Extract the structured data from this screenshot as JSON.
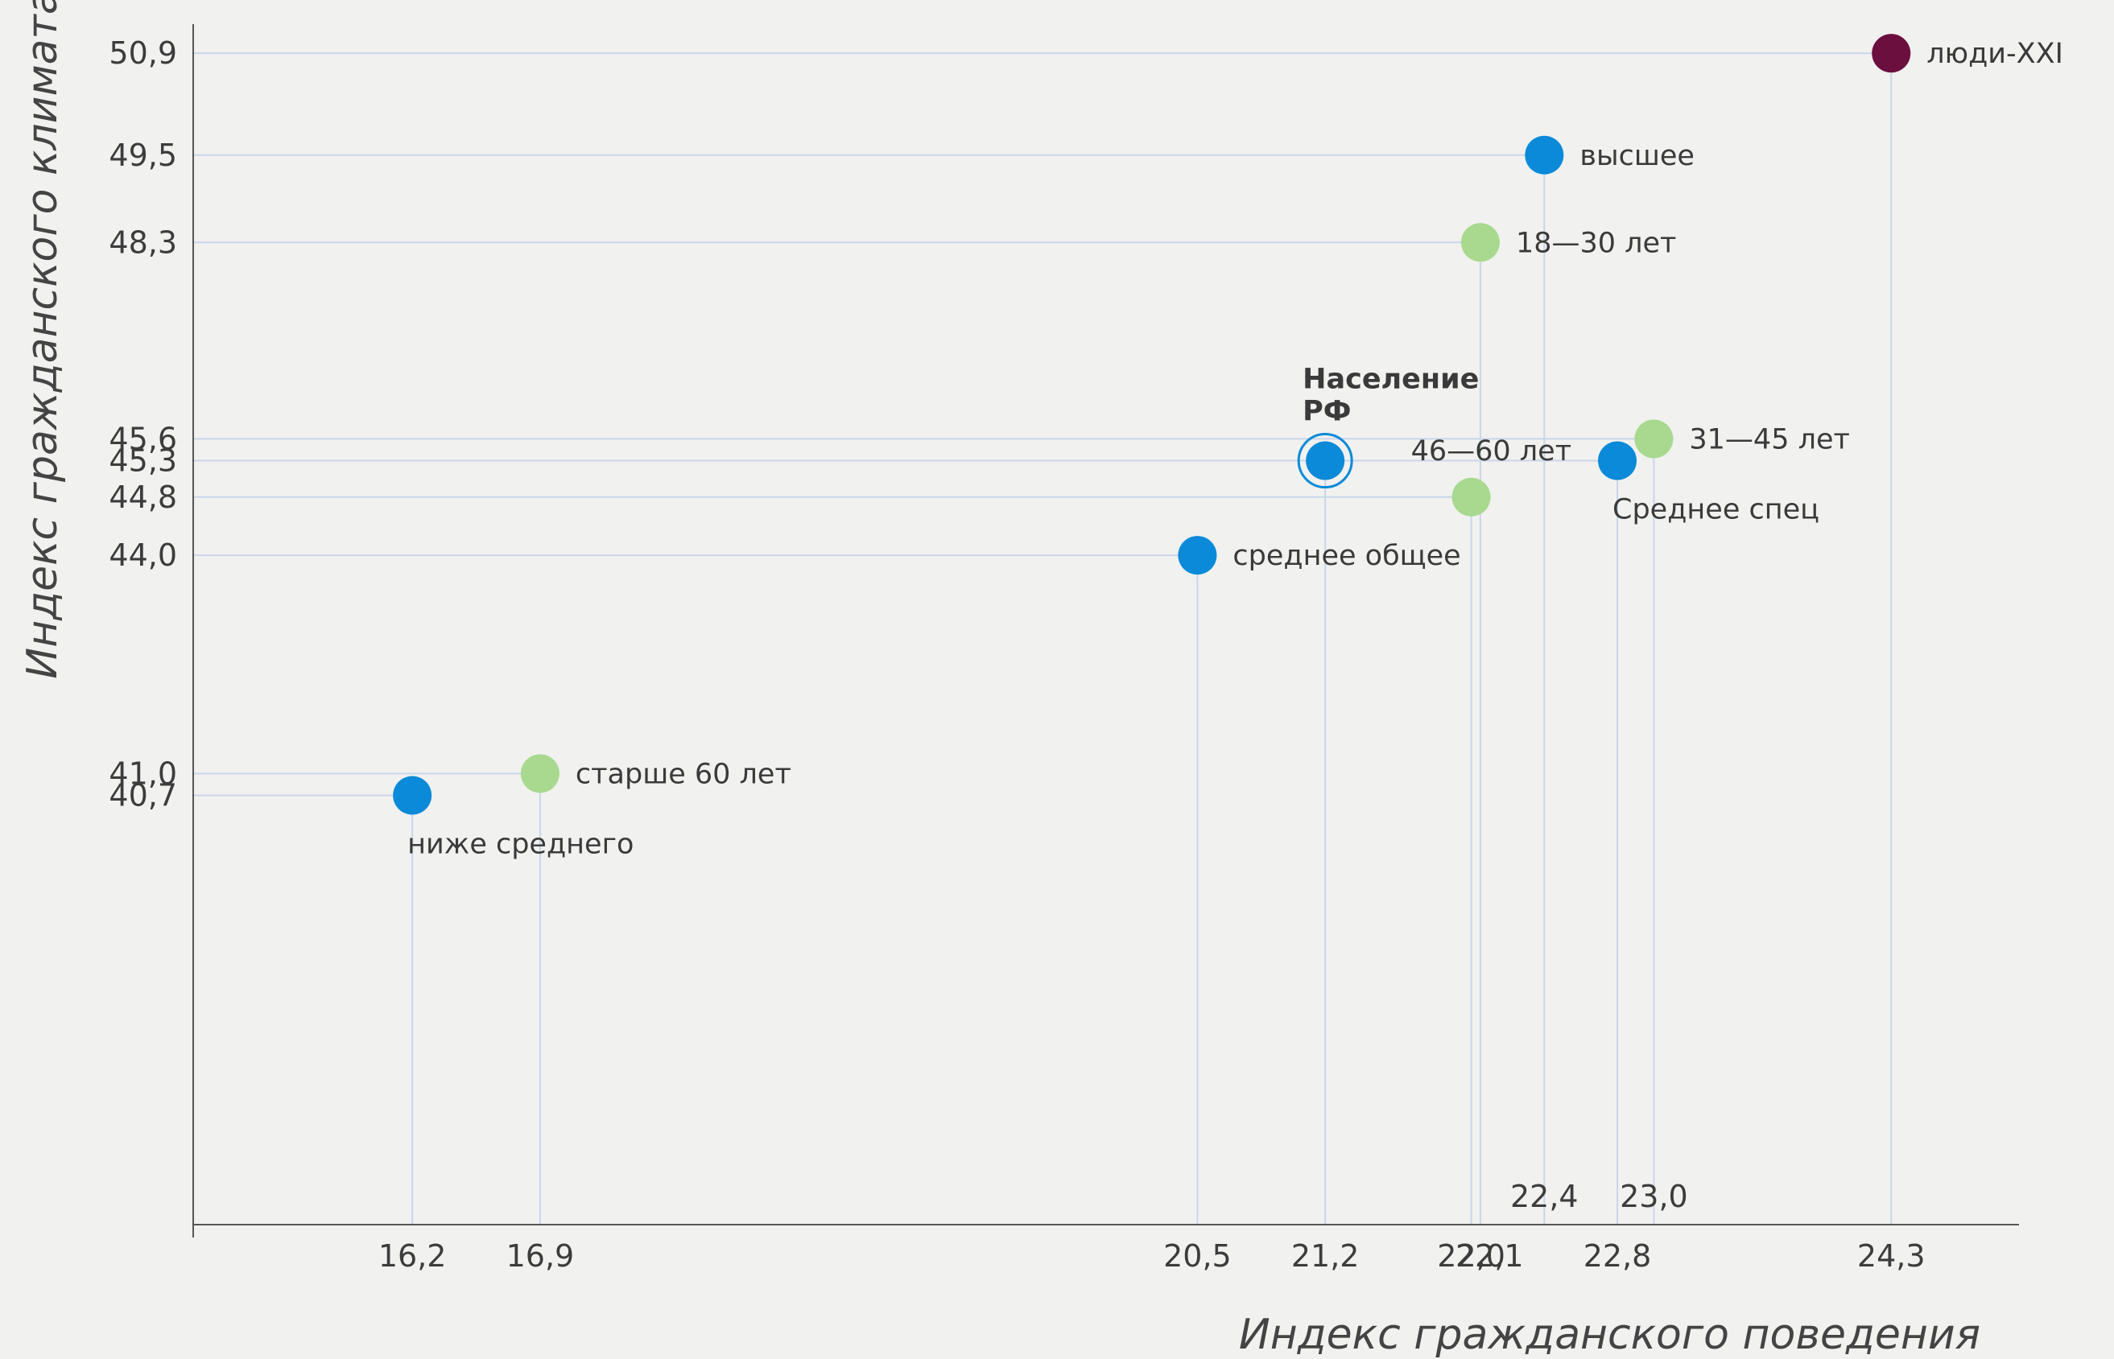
{
  "chart_data": {
    "type": "scatter",
    "xlabel": "Индекс гражданского поведения",
    "ylabel": "Индекс гражданского климата",
    "xlim": [
      15.0,
      25.0
    ],
    "ylim": [
      34.8,
      51.3
    ],
    "grid": false,
    "x_ticks": [
      {
        "value": 16.2,
        "label": "16,2",
        "row": "bottom"
      },
      {
        "value": 16.9,
        "label": "16,9",
        "row": "bottom"
      },
      {
        "value": 20.5,
        "label": "20,5",
        "row": "bottom"
      },
      {
        "value": 21.2,
        "label": "21,2",
        "row": "bottom"
      },
      {
        "value": 22.0,
        "label": "22,0",
        "row": "bottom"
      },
      {
        "value": 22.1,
        "label": "22,1",
        "row": "bottom"
      },
      {
        "value": 22.4,
        "label": "22,4",
        "row": "top"
      },
      {
        "value": 22.8,
        "label": "22,8",
        "row": "bottom"
      },
      {
        "value": 23.0,
        "label": "23,0",
        "row": "top"
      },
      {
        "value": 24.3,
        "label": "24,3",
        "row": "bottom"
      }
    ],
    "y_ticks": [
      {
        "value": 50.9,
        "label": "50,9"
      },
      {
        "value": 49.5,
        "label": "49,5"
      },
      {
        "value": 48.3,
        "label": "48,3"
      },
      {
        "value": 45.6,
        "label": "45,6"
      },
      {
        "value": 45.3,
        "label": "45,3"
      },
      {
        "value": 44.8,
        "label": "44,8"
      },
      {
        "value": 44.0,
        "label": "44,0"
      },
      {
        "value": 41.0,
        "label": "41,0"
      },
      {
        "value": 40.7,
        "label": "40,7"
      }
    ],
    "points": [
      {
        "x": 24.3,
        "y": 50.9,
        "label": "люди-XXI",
        "color": "#6b0f3e",
        "label_side": "right",
        "bold": false,
        "highlight": false
      },
      {
        "x": 22.4,
        "y": 49.5,
        "label": "высшее",
        "color": "#0a8ad8",
        "label_side": "right",
        "bold": false,
        "highlight": false
      },
      {
        "x": 22.05,
        "y": 48.3,
        "label": "18—30 лет",
        "color": "#a8d98e",
        "label_side": "right",
        "bold": false,
        "highlight": false
      },
      {
        "x": 21.2,
        "y": 45.3,
        "label": "Население РФ",
        "color": "#0a8ad8",
        "label_side": "above",
        "bold": true,
        "highlight": true
      },
      {
        "x": 22.0,
        "y": 44.8,
        "label": "46—60 лет",
        "color": "#a8d98e",
        "label_side": "upper-left",
        "bold": false,
        "highlight": false
      },
      {
        "x": 22.8,
        "y": 45.3,
        "label": "Среднее спец",
        "color": "#0a8ad8",
        "label_side": "below",
        "bold": false,
        "highlight": false
      },
      {
        "x": 23.0,
        "y": 45.6,
        "label": "31—45 лет",
        "color": "#a8d98e",
        "label_side": "right",
        "bold": false,
        "highlight": false
      },
      {
        "x": 20.5,
        "y": 44.0,
        "label": "среднее общее",
        "color": "#0a8ad8",
        "label_side": "right",
        "bold": false,
        "highlight": false
      },
      {
        "x": 16.9,
        "y": 41.0,
        "label": "старше 60 лет",
        "color": "#a8d98e",
        "label_side": "right",
        "bold": false,
        "highlight": false
      },
      {
        "x": 16.2,
        "y": 40.7,
        "label": "ниже среднего",
        "color": "#0a8ad8",
        "label_side": "below",
        "bold": false,
        "highlight": false
      }
    ],
    "colors": {
      "education": "#0a8ad8",
      "age": "#a8d98e",
      "people_xxi": "#6b0f3e",
      "guide_line": "#c9d6ea",
      "axis": "#555555"
    }
  }
}
